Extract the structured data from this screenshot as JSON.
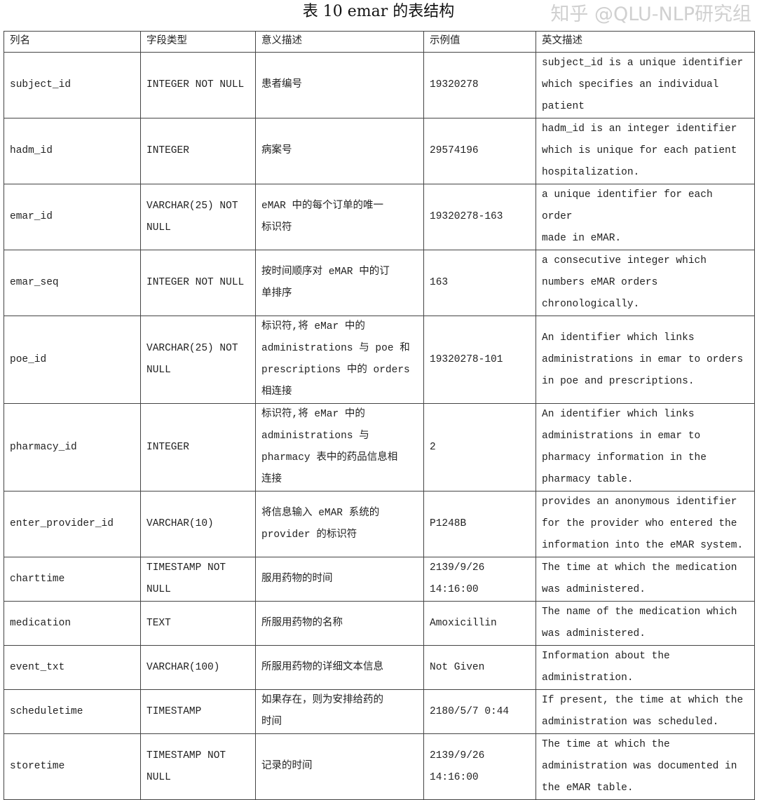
{
  "title": "表 10 emar 的表结构",
  "headers": [
    "列名",
    "字段类型",
    "意义描述",
    "示例值",
    "英文描述"
  ],
  "rows": [
    [
      "subject_id",
      "INTEGER NOT NULL",
      "患者编号",
      "19320278",
      "subject_id is a unique identifier\nwhich specifies an individual\npatient"
    ],
    [
      "hadm_id",
      "INTEGER",
      "病案号",
      "29574196",
      "hadm_id is an integer identifier\nwhich is unique for each patient\nhospitalization."
    ],
    [
      "emar_id",
      "VARCHAR(25) NOT\nNULL",
      "eMAR 中的每个订单的唯一\n标识符",
      "19320278-163",
      "a unique identifier for each order\nmade in eMAR."
    ],
    [
      "emar_seq",
      "INTEGER NOT NULL",
      "按时间顺序对 eMAR 中的订\n单排序",
      "163",
      "a consecutive integer which\nnumbers eMAR orders\nchronologically."
    ],
    [
      "poe_id",
      "VARCHAR(25) NOT\nNULL",
      "标识符,将 eMar 中的\nadministrations 与 poe 和\nprescriptions 中的 orders\n相连接",
      "19320278-101",
      "An identifier which links\nadministrations in emar to orders\nin poe and prescriptions."
    ],
    [
      "pharmacy_id",
      "INTEGER",
      "标识符,将 eMar 中的\nadministrations 与\npharmacy 表中的药品信息相\n连接",
      "2",
      "An identifier which links\nadministrations in emar to\npharmacy information in the\npharmacy table."
    ],
    [
      "enter_provider_id",
      "VARCHAR(10)",
      "将信息输入 eMAR 系统的\nprovider 的标识符",
      "P1248B",
      "provides an anonymous identifier\nfor the provider who entered the\ninformation into the eMAR system."
    ],
    [
      "charttime",
      "TIMESTAMP NOT\nNULL",
      "服用药物的时间",
      "2139/9/26\n14:16:00",
      "The time at which the medication\nwas administered."
    ],
    [
      "medication",
      "TEXT",
      "所服用药物的名称",
      "Amoxicillin",
      "The name of the medication which\nwas administered."
    ],
    [
      "event_txt",
      "VARCHAR(100)",
      "所服用药物的详细文本信息",
      "Not Given",
      "Information about the\nadministration."
    ],
    [
      "scheduletime",
      "TIMESTAMP",
      "如果存在，则为安排给药的\n时间",
      "2180/5/7 0:44",
      "If present, the time at which the\nadministration was scheduled."
    ],
    [
      "storetime",
      "TIMESTAMP NOT\nNULL",
      "记录的时间",
      "2139/9/26\n14:16:00",
      "The time at which the\nadministration was documented in\nthe eMAR table."
    ]
  ],
  "watermark": "知乎 @QLU-NLP研究组"
}
